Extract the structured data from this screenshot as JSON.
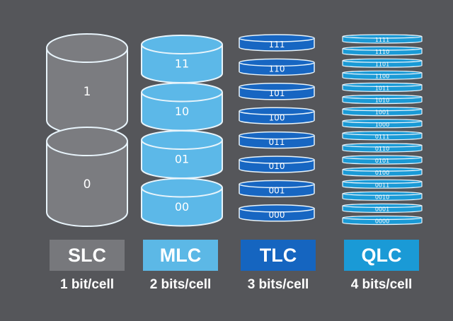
{
  "colors": {
    "background": "#55565a",
    "slc": "#7b7c80",
    "mlc": "#5cb8e8",
    "tlc": "#1766c2",
    "qlc": "#1a9ad6"
  },
  "columns": [
    {
      "label": "SLC",
      "caption": "1 bit/cell",
      "cells": [
        "1",
        "0"
      ]
    },
    {
      "label": "MLC",
      "caption": "2 bits/cell",
      "cells": [
        "11",
        "10",
        "01",
        "00"
      ]
    },
    {
      "label": "TLC",
      "caption": "3 bits/cell",
      "cells": [
        "111",
        "110",
        "101",
        "100",
        "011",
        "010",
        "001",
        "000"
      ]
    },
    {
      "label": "QLC",
      "caption": "4 bits/cell",
      "cells": [
        "1111",
        "1110",
        "1101",
        "1100",
        "1011",
        "1010",
        "1001",
        "1000",
        "0111",
        "0110",
        "0101",
        "0100",
        "0011",
        "0010",
        "0001",
        "0000"
      ]
    }
  ]
}
